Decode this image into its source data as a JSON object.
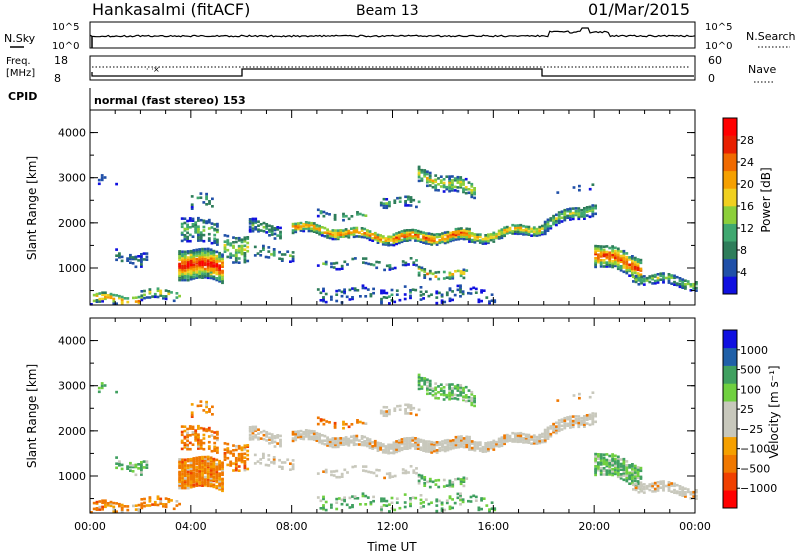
{
  "header": {
    "station": "Hankasalmi (fitACF)",
    "beam": "Beam 13",
    "date": "01/Mar/2015"
  },
  "noise_panel": {
    "left_label": "N.Sky",
    "right_label": "N.Search",
    "left_ticks": [
      "10^5",
      "10^0"
    ],
    "right_ticks": [
      "10^5",
      "10^0"
    ]
  },
  "freq_panel": {
    "left_label_1": "Freq.",
    "left_label_2": "[MHz]",
    "left_ticks": [
      "18",
      "8"
    ],
    "right_label": "Nave",
    "right_ticks": [
      "60",
      "0"
    ]
  },
  "cpid": {
    "label": "CPID",
    "text": "normal (fast stereo) 153"
  },
  "colors": {
    "power": [
      "#1010e0",
      "#2050a8",
      "#2e7d5a",
      "#40a870",
      "#8ccf3a",
      "#f0d020",
      "#f5a000",
      "#f06a00",
      "#e82000",
      "#ff0000"
    ],
    "velocity": [
      "#ff0000",
      "#f04000",
      "#f07800",
      "#f5a000",
      "#c8c8bc",
      "#c8c8bc",
      "#70d040",
      "#40a060",
      "#2060a8",
      "#1010e0"
    ]
  },
  "chart_data": [
    {
      "type": "heatmap",
      "quantity": "Power",
      "ylabel": "Slant Range [km]",
      "xlabel": "",
      "ylim": [
        180,
        4500
      ],
      "xlim": [
        0,
        24
      ],
      "yticks": [
        "1000",
        "2000",
        "3000",
        "4000"
      ],
      "xticks": [
        "00:00",
        "04:00",
        "08:00",
        "12:00",
        "16:00",
        "20:00",
        "00:00"
      ],
      "colorbar": {
        "label": "Power [dB]",
        "ticks": [
          "28",
          "24",
          "20",
          "16",
          "12",
          "8",
          "4"
        ]
      }
    },
    {
      "type": "heatmap",
      "quantity": "Velocity",
      "ylabel": "Slant Range [km]",
      "xlabel": "Time UT",
      "ylim": [
        180,
        4500
      ],
      "xlim": [
        0,
        24
      ],
      "yticks": [
        "1000",
        "2000",
        "3000",
        "4000"
      ],
      "xticks": [
        "00:00",
        "04:00",
        "08:00",
        "12:00",
        "16:00",
        "20:00",
        "00:00"
      ],
      "colorbar": {
        "label": "Velocity [m s⁻¹]",
        "ticks": [
          "1000",
          "500",
          "100",
          "25",
          "−25",
          "−100",
          "−500",
          "−1000"
        ]
      }
    }
  ]
}
